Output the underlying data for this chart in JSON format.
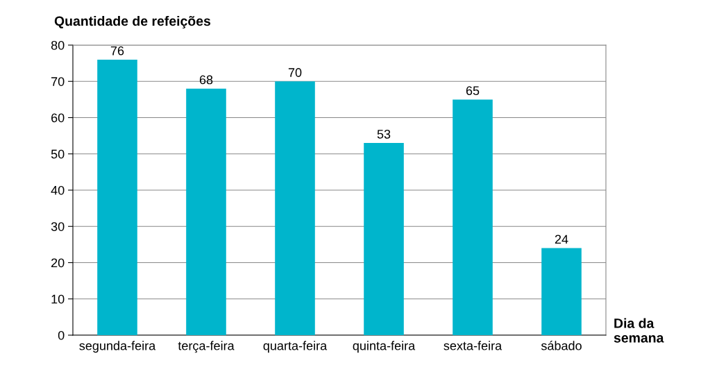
{
  "chart_data": {
    "type": "bar",
    "ylabel": "Quantidade de refeições",
    "xlabel": "Dia da semana",
    "categories": [
      "segunda-feira",
      "terça-feira",
      "quarta-feira",
      "quinta-feira",
      "sexta-feira",
      "sábado"
    ],
    "values": [
      76,
      68,
      70,
      53,
      65,
      24
    ],
    "color": "#00b5cc",
    "ylim": [
      0,
      80
    ],
    "yticks": [
      0,
      10,
      20,
      30,
      40,
      50,
      60,
      70,
      80
    ],
    "grid": "y",
    "data_labels": true
  }
}
